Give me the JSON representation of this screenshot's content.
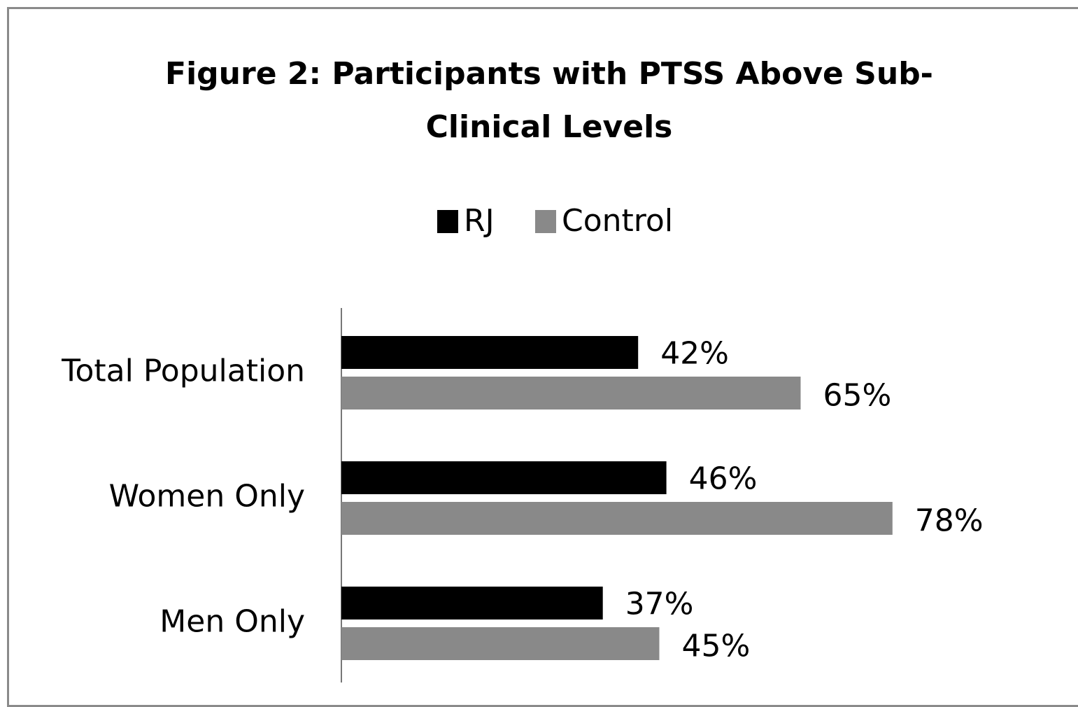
{
  "chart_data": {
    "type": "hbar",
    "title": "Figure 2: Participants with PTSS Above Sub-Clinical Levels",
    "categories": [
      "Total Population",
      "Women Only",
      "Men Only"
    ],
    "series": [
      {
        "name": "RJ",
        "color": "#000000",
        "values": [
          42,
          46,
          37
        ],
        "value_labels": [
          "42%",
          "46%",
          "37%"
        ]
      },
      {
        "name": "Control",
        "color": "#898989",
        "values": [
          65,
          78,
          45
        ],
        "value_labels": [
          "65%",
          "78%",
          "45%"
        ]
      }
    ]
  }
}
